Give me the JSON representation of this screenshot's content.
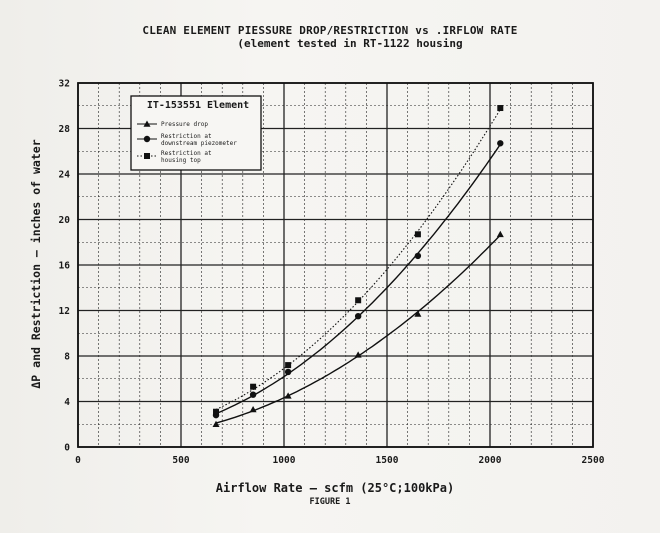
{
  "chart_data": {
    "type": "line",
    "title": "CLEAN ELEMENT PIESSURE DROP/RESTRICTION vs .IRFLOW RATE",
    "subtitle": "(element tested in RT-1122 housing",
    "xlabel": "Airflow Rate – scfm (25°C;100kPa)",
    "ylabel": "ΔP and Restriction – inches of water",
    "figure_label": "FIGURE 1",
    "xlim": [
      0,
      2500
    ],
    "ylim": [
      0,
      32
    ],
    "xticks": [
      0,
      500,
      1000,
      1500,
      2000,
      2500
    ],
    "yticks": [
      0,
      4,
      8,
      12,
      16,
      20,
      24,
      28,
      32
    ],
    "grid": true,
    "legend_placement": "top-left",
    "legend_title": "IT-153551 Element",
    "series": [
      {
        "name": "Pressure drop",
        "marker": "triangle",
        "line_style": "solid",
        "x": [
          670,
          850,
          1020,
          1360,
          1650,
          2050
        ],
        "y": [
          2.0,
          3.3,
          4.5,
          8.1,
          11.7,
          18.7
        ]
      },
      {
        "name": "Restriction at downstream piezometer",
        "marker": "circle",
        "line_style": "solid",
        "x": [
          670,
          850,
          1020,
          1360,
          1650,
          2050
        ],
        "y": [
          2.8,
          4.6,
          6.6,
          11.5,
          16.8,
          26.7
        ]
      },
      {
        "name": "Restriction at housing top",
        "marker": "square",
        "line_style": "dotted",
        "x": [
          670,
          850,
          1020,
          1360,
          1650,
          2050
        ],
        "y": [
          3.1,
          5.3,
          7.2,
          12.9,
          18.7,
          29.8
        ]
      }
    ]
  }
}
